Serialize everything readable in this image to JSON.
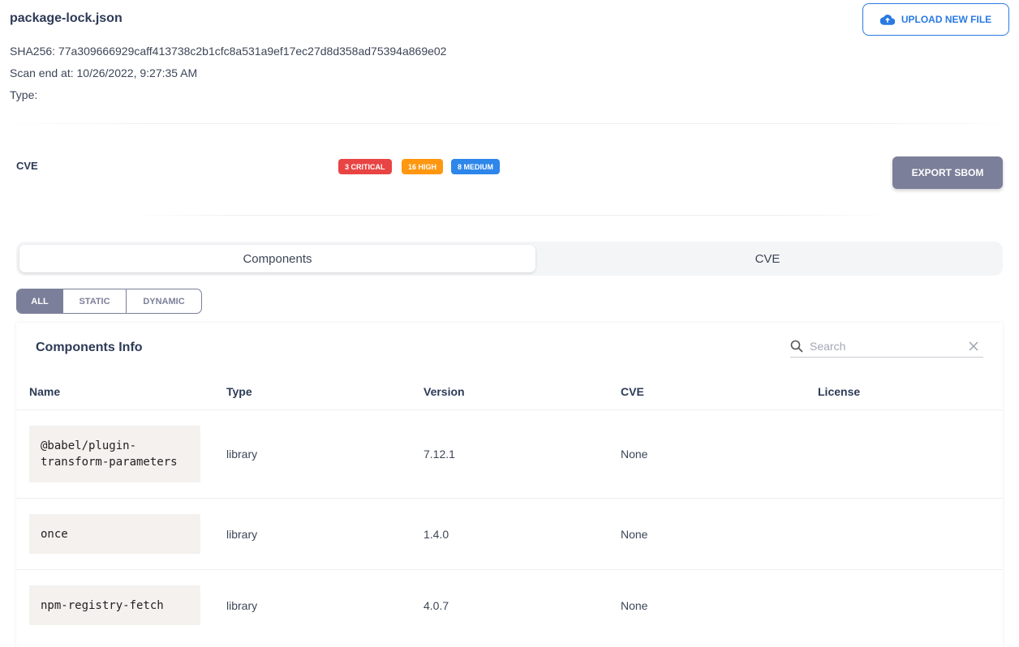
{
  "file": {
    "name": "package-lock.json",
    "sha": "SHA256: 77a309666929caff413738c2b1cfc8a531a9ef17ec27d8d358ad75394a869e02",
    "scan_end": "Scan end at: 10/26/2022, 9:27:35 AM",
    "type": "Type:"
  },
  "upload_label": "UPLOAD NEW FILE",
  "cve_section": {
    "label": "CVE",
    "badges": [
      {
        "text": "3 CRITICAL",
        "color": "#e94444"
      },
      {
        "text": "16 HIGH",
        "color": "#ff9710"
      },
      {
        "text": "8 MEDIUM",
        "color": "#2d86ea"
      }
    ],
    "export_label": "EXPORT SBOM"
  },
  "tabs": [
    {
      "label": "Components",
      "selected": true
    },
    {
      "label": "CVE",
      "selected": false
    }
  ],
  "filters": [
    {
      "label": "ALL",
      "selected": true
    },
    {
      "label": "STATIC"
    },
    {
      "label": "DYNAMIC"
    }
  ],
  "table": {
    "title": "Components Info",
    "search_placeholder": "Search",
    "columns": [
      "Name",
      "Type",
      "Version",
      "CVE",
      "License"
    ],
    "rows": [
      {
        "name": "@babel/plugin-transform-parameters",
        "type": "library",
        "version": "7.12.1",
        "cve": "None",
        "license": ""
      },
      {
        "name": "once",
        "type": "library",
        "version": "1.4.0",
        "cve": "None",
        "license": ""
      },
      {
        "name": "npm-registry-fetch",
        "type": "library",
        "version": "4.0.7",
        "cve": "None",
        "license": ""
      }
    ]
  }
}
